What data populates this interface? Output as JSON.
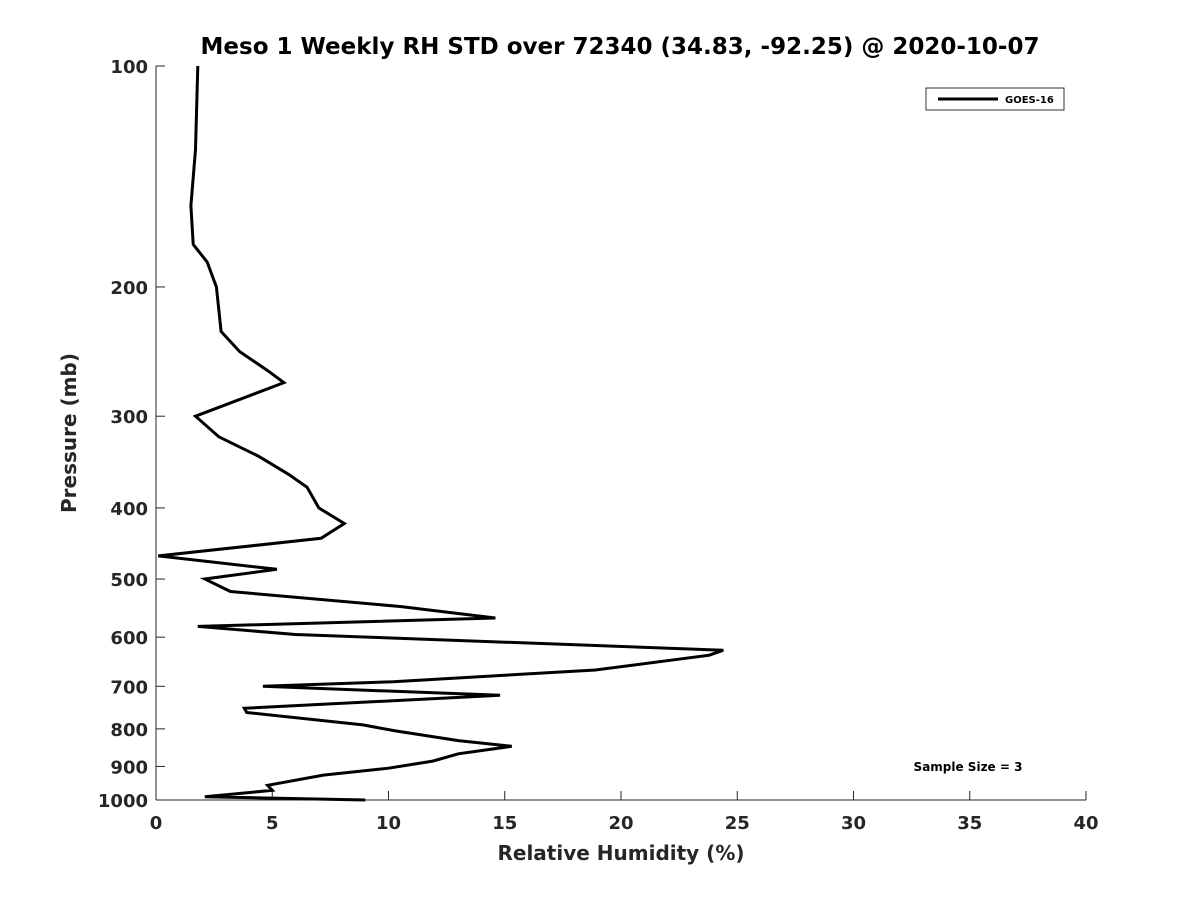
{
  "chart_data": {
    "type": "line",
    "title": "Meso 1 Weekly RH STD over 72340 (34.83, -92.25) @ 2020-10-07",
    "xlabel": "Relative Humidity (%)",
    "ylabel": "Pressure (mb)",
    "xlim": [
      0,
      40
    ],
    "ylim": [
      100,
      1000
    ],
    "yscale": "log",
    "y_reversed": true,
    "grid": false,
    "legend_position": "top-right",
    "x_ticks": [
      "0",
      "5",
      "10",
      "15",
      "20",
      "25",
      "30",
      "35",
      "40"
    ],
    "y_ticks": [
      "100",
      "200",
      "300",
      "400",
      "500",
      "600",
      "700",
      "800",
      "900",
      "1000"
    ],
    "annotation": "Sample Size = 3",
    "series": [
      {
        "name": "GOES-16",
        "color": "#000000",
        "x": [
          1.8,
          1.7,
          1.5,
          1.6,
          2.2,
          2.6,
          2.8,
          3.6,
          4.8,
          5.5,
          1.7,
          2.7,
          4.4,
          5.7,
          6.5,
          7.0,
          8.1,
          7.1,
          0.1,
          5.2,
          2.1,
          3.2,
          10.5,
          14.6,
          1.8,
          6.0,
          24.4,
          23.8,
          18.9,
          10.2,
          4.6,
          14.8,
          3.8,
          3.9,
          8.9,
          10.3,
          13.0,
          15.3,
          13.0,
          11.9,
          10.0,
          7.2,
          4.8,
          5.0,
          2.1,
          9.0
        ],
        "y": [
          100,
          130,
          155,
          175,
          185,
          200,
          230,
          245,
          260,
          270,
          300,
          320,
          340,
          360,
          375,
          400,
          420,
          440,
          465,
          485,
          500,
          520,
          545,
          565,
          580,
          595,
          625,
          635,
          665,
          690,
          700,
          720,
          750,
          760,
          790,
          805,
          830,
          845,
          865,
          885,
          905,
          925,
          955,
          970,
          990,
          1000
        ]
      }
    ]
  }
}
